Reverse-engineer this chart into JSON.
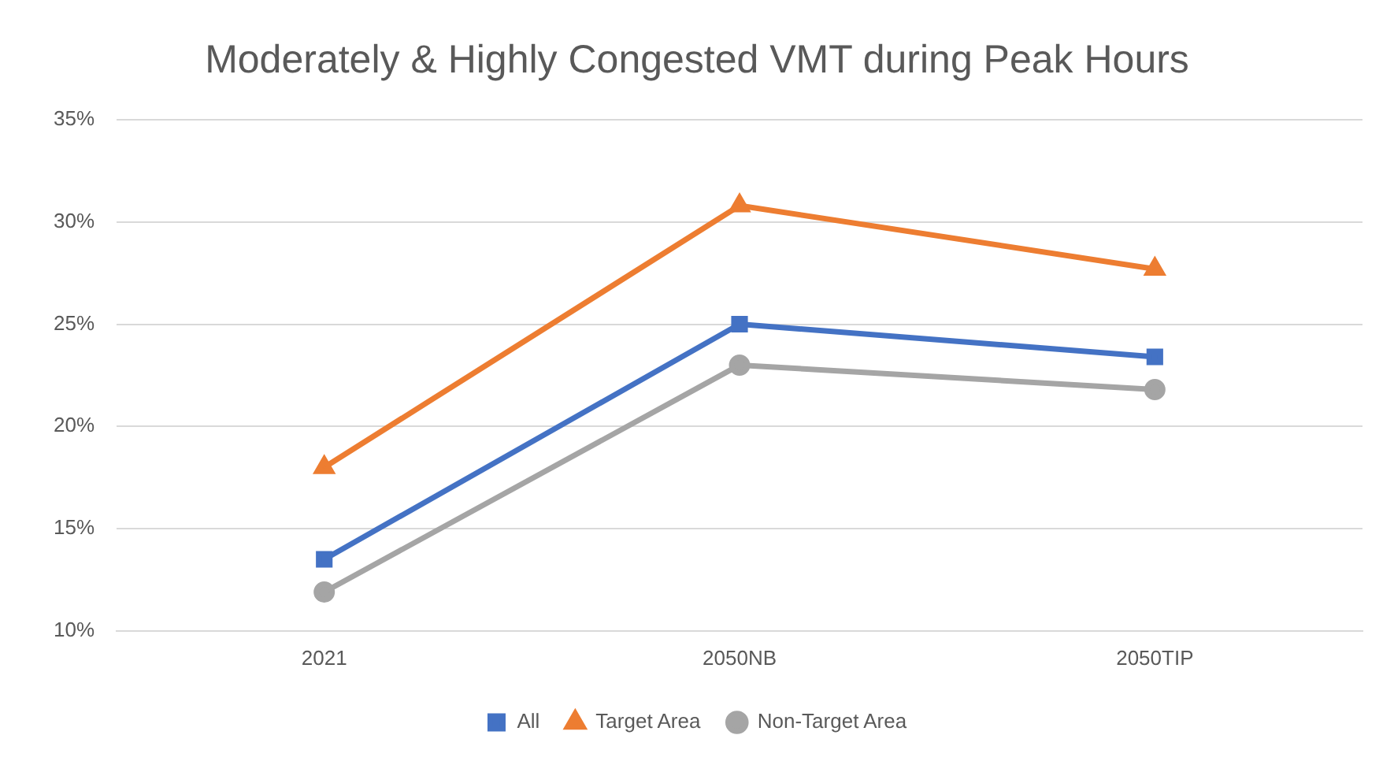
{
  "chart_data": {
    "type": "line",
    "title": "Moderately & Highly Congested VMT during Peak Hours",
    "categories": [
      "2021",
      "2050NB",
      "2050TIP"
    ],
    "series": [
      {
        "name": "All",
        "color": "#4472c4",
        "marker": "square",
        "values": [
          13.5,
          25.0,
          23.4
        ]
      },
      {
        "name": "Target Area",
        "color": "#ed7d31",
        "marker": "triangle",
        "values": [
          18.0,
          30.8,
          27.7
        ]
      },
      {
        "name": "Non-Target Area",
        "color": "#a5a5a5",
        "marker": "circle",
        "values": [
          11.9,
          23.0,
          21.8
        ]
      }
    ],
    "ylim": [
      10,
      35
    ],
    "yticks": [
      {
        "value": 10,
        "label": "10%"
      },
      {
        "value": 15,
        "label": "15%"
      },
      {
        "value": 20,
        "label": "20%"
      },
      {
        "value": 25,
        "label": "25%"
      },
      {
        "value": 30,
        "label": "30%"
      },
      {
        "value": 35,
        "label": "35%"
      }
    ],
    "grid": "y",
    "legend": "bottom",
    "line_style": "solid"
  }
}
